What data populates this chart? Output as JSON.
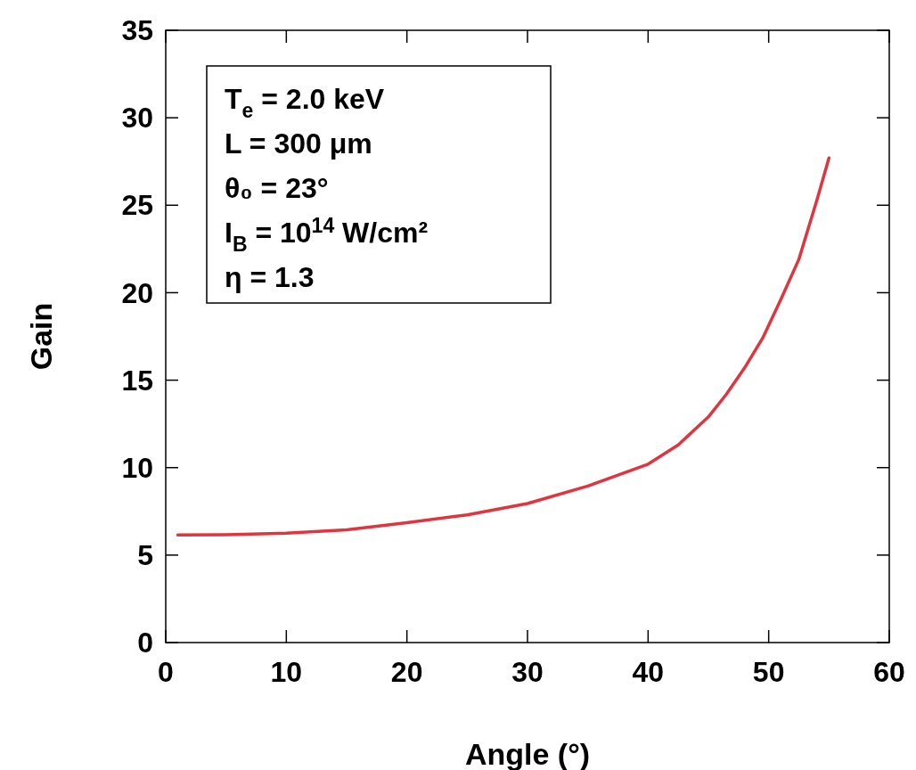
{
  "chart_data": {
    "type": "line",
    "xlabel": "Angle (°)",
    "ylabel": "Gain",
    "x": [
      1,
      5,
      10,
      15,
      20,
      25,
      30,
      35,
      40,
      42.5,
      45,
      46.5,
      48,
      49.5,
      51,
      52.5,
      54,
      55
    ],
    "series": [
      {
        "color": "#e0353f",
        "values": [
          6.15,
          6.17,
          6.25,
          6.45,
          6.85,
          7.3,
          7.95,
          8.95,
          10.2,
          11.3,
          12.9,
          14.2,
          15.7,
          17.4,
          19.6,
          21.9,
          25.3,
          27.7
        ]
      }
    ],
    "xlim": [
      0,
      60
    ],
    "xticks": [
      0,
      10,
      20,
      30,
      40,
      50,
      60
    ],
    "ylim": [
      0,
      35
    ],
    "yticks": [
      0,
      5,
      10,
      15,
      20,
      25,
      30,
      35
    ],
    "grid": false,
    "marker": "none",
    "line_style": "solid",
    "annotations": [
      "T$_{e}$ = 2.0 keV",
      "L = 300 μm",
      "θ₀ = 23°",
      "I$_{B}$ = 10$^{14}$ W/cm²",
      "η = 1.3"
    ]
  }
}
